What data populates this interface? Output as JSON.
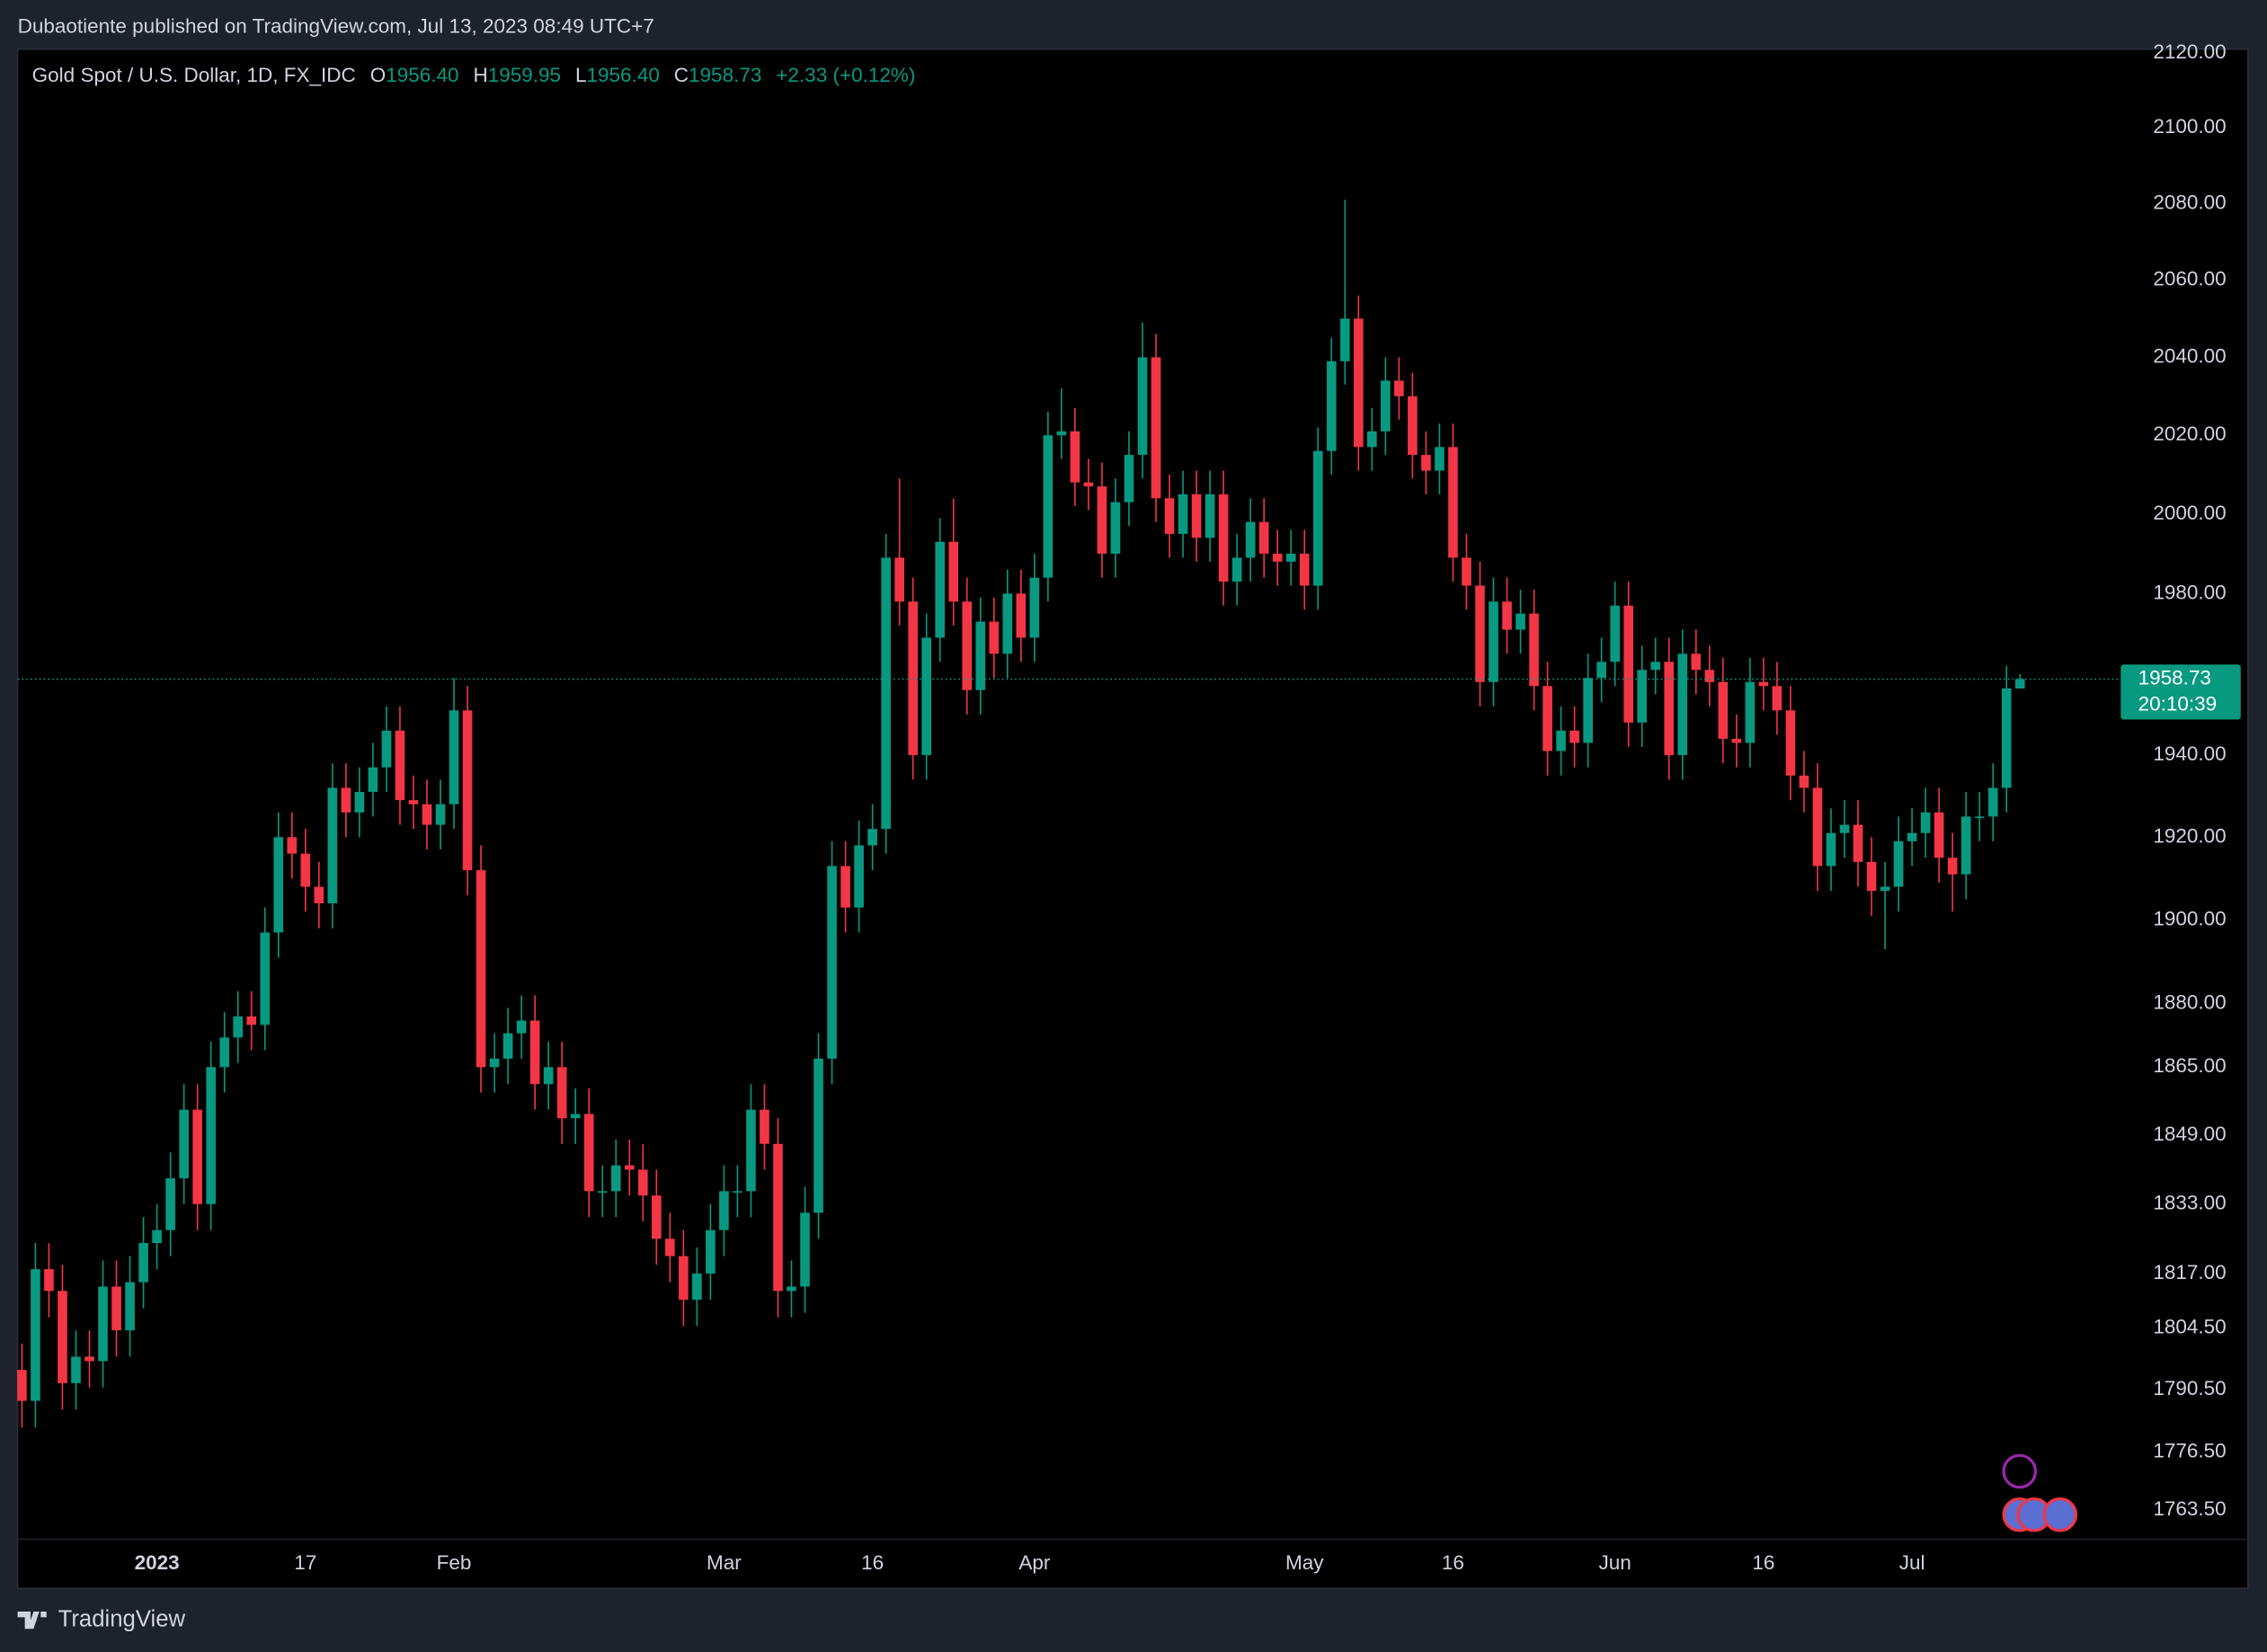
{
  "header": "Dubaotiente published on TradingView.com, Jul 13, 2023 08:49 UTC+7",
  "footer": "TradingView",
  "chart_data": {
    "type": "candlestick",
    "title": "Gold Spot / U.S. Dollar, 1D, FX_IDC",
    "legend": [
      {
        "key": "O",
        "value": "1956.40"
      },
      {
        "key": "H",
        "value": "1959.95"
      },
      {
        "key": "L",
        "value": "1956.40"
      },
      {
        "key": "C",
        "value": "1958.73"
      }
    ],
    "change": "+2.33 (+0.12%)",
    "countdown": "20:10:39",
    "up_color": "#089981",
    "down_color": "#f23645",
    "log_scale": true,
    "grid": false,
    "ylim": [
      1757,
      2121
    ],
    "yticks": [
      {
        "value": 2120,
        "label": "2120.00"
      },
      {
        "value": 2100,
        "label": "2100.00"
      },
      {
        "value": 2080,
        "label": "2080.00"
      },
      {
        "value": 2060,
        "label": "2060.00"
      },
      {
        "value": 2040,
        "label": "2040.00"
      },
      {
        "value": 2020,
        "label": "2020.00"
      },
      {
        "value": 2000,
        "label": "2000.00"
      },
      {
        "value": 1980,
        "label": "1980.00"
      },
      {
        "value": 1940,
        "label": "1940.00"
      },
      {
        "value": 1920,
        "label": "1920.00"
      },
      {
        "value": 1900,
        "label": "1900.00"
      },
      {
        "value": 1880,
        "label": "1880.00"
      },
      {
        "value": 1865,
        "label": "1865.00"
      },
      {
        "value": 1849,
        "label": "1849.00"
      },
      {
        "value": 1833,
        "label": "1833.00"
      },
      {
        "value": 1817,
        "label": "1817.00"
      },
      {
        "value": 1804.5,
        "label": "1804.50"
      },
      {
        "value": 1790.5,
        "label": "1790.50"
      },
      {
        "value": 1776.5,
        "label": "1776.50"
      },
      {
        "value": 1763.5,
        "label": "1763.50"
      }
    ],
    "categories": [
      null,
      null,
      null,
      null,
      null,
      null,
      null,
      null,
      null,
      null,
      "2023",
      null,
      null,
      null,
      null,
      null,
      null,
      null,
      null,
      null,
      null,
      "17",
      null,
      null,
      null,
      null,
      null,
      null,
      null,
      null,
      null,
      null,
      "Feb",
      null,
      null,
      null,
      null,
      null,
      null,
      null,
      null,
      null,
      null,
      null,
      null,
      null,
      null,
      null,
      null,
      null,
      null,
      null,
      "Mar",
      null,
      null,
      null,
      null,
      null,
      null,
      null,
      null,
      null,
      null,
      "16",
      null,
      null,
      null,
      null,
      null,
      null,
      null,
      null,
      null,
      null,
      null,
      "Apr",
      null,
      null,
      null,
      null,
      null,
      null,
      null,
      null,
      null,
      null,
      null,
      null,
      null,
      null,
      null,
      null,
      null,
      null,
      null,
      "May",
      null,
      null,
      null,
      null,
      null,
      null,
      null,
      null,
      null,
      null,
      "16",
      null,
      null,
      null,
      null,
      null,
      null,
      null,
      null,
      null,
      null,
      null,
      "Jun",
      null,
      null,
      null,
      null,
      null,
      null,
      null,
      null,
      null,
      null,
      "16",
      null,
      null,
      null,
      null,
      null,
      null,
      null,
      null,
      null,
      null,
      "Jul",
      null,
      null,
      null,
      null,
      null,
      null,
      null,
      null
    ],
    "open": [
      1795,
      1788,
      1818,
      1813,
      1792,
      1798,
      1797,
      1814,
      1804,
      1815,
      1824,
      1827,
      1839,
      1855,
      1833,
      1865,
      1872,
      1877,
      1875,
      1897,
      1920,
      1916,
      1908,
      1904,
      1932,
      1926,
      1931,
      1937,
      1946,
      1929,
      1928,
      1923,
      1928,
      1951,
      1912,
      1865,
      1867,
      1873,
      1876,
      1861,
      1865,
      1853,
      1854,
      1836,
      1836,
      1842,
      1841,
      1835,
      1825,
      1821,
      1811,
      1817,
      1827,
      1836,
      1836,
      1855,
      1847,
      1813,
      1814,
      1831,
      1867,
      1913,
      1903,
      1918,
      1922,
      1989,
      1978,
      1940,
      1969,
      1993,
      1978,
      1956,
      1973,
      1965,
      1980,
      1969,
      1984,
      2020,
      2021,
      2008,
      2007,
      1990,
      2003,
      2015,
      2040,
      2004,
      1995,
      2005,
      1994,
      2005,
      1983,
      1989,
      1998,
      1990,
      1988,
      1990,
      1982,
      2016,
      2039,
      2050,
      2017,
      2021,
      2034,
      2030,
      2015,
      2011,
      2017,
      1989,
      1982,
      1958,
      1978,
      1971,
      1975,
      1957,
      1941,
      1946,
      1943,
      1959,
      1963,
      1977,
      1948,
      1961,
      1963,
      1940,
      1965,
      1961,
      1958,
      1944,
      1943,
      1958,
      1957,
      1951,
      1935,
      1932,
      1913,
      1921,
      1923,
      1914,
      1907,
      1908,
      1919,
      1921,
      1926,
      1915,
      1911,
      1925,
      1925,
      1932,
      1956.4
    ],
    "high": [
      1801,
      1824,
      1824,
      1819,
      1804,
      1804,
      1820,
      1820,
      1821,
      1830,
      1833,
      1845,
      1861,
      1861,
      1871,
      1878,
      1883,
      1883,
      1903,
      1926,
      1926,
      1922,
      1914,
      1938,
      1938,
      1937,
      1943,
      1952,
      1952,
      1935,
      1934,
      1934,
      1959,
      1957,
      1918,
      1873,
      1879,
      1882,
      1882,
      1871,
      1871,
      1860,
      1860,
      1842,
      1848,
      1848,
      1847,
      1841,
      1831,
      1827,
      1823,
      1833,
      1842,
      1842,
      1861,
      1861,
      1853,
      1820,
      1837,
      1873,
      1919,
      1919,
      1924,
      1928,
      1995,
      2009,
      1984,
      1975,
      1999,
      2004,
      1984,
      1979,
      1979,
      1986,
      1986,
      1990,
      2026,
      2032,
      2027,
      2014,
      2013,
      2009,
      2021,
      2049,
      2046,
      2010,
      2011,
      2011,
      2011,
      2011,
      1995,
      2004,
      2004,
      1996,
      1996,
      1996,
      2022,
      2045,
      2081,
      2056,
      2027,
      2040,
      2040,
      2036,
      2021,
      2023,
      2023,
      1995,
      1988,
      1984,
      1984,
      1981,
      1981,
      1963,
      1952,
      1952,
      1965,
      1969,
      1983,
      1983,
      1967,
      1969,
      1969,
      1971,
      1971,
      1967,
      1964,
      1950,
      1964,
      1964,
      1963,
      1957,
      1941,
      1938,
      1927,
      1929,
      1929,
      1920,
      1914,
      1925,
      1927,
      1932,
      1932,
      1921,
      1931,
      1931,
      1938,
      1962,
      1959.95
    ],
    "low": [
      1782,
      1782,
      1807,
      1786,
      1786,
      1791,
      1791,
      1798,
      1798,
      1809,
      1818,
      1821,
      1833,
      1827,
      1827,
      1859,
      1866,
      1869,
      1869,
      1891,
      1910,
      1902,
      1898,
      1898,
      1920,
      1920,
      1925,
      1931,
      1923,
      1922,
      1917,
      1917,
      1922,
      1906,
      1859,
      1859,
      1861,
      1867,
      1855,
      1855,
      1847,
      1847,
      1830,
      1830,
      1830,
      1835,
      1829,
      1819,
      1815,
      1805,
      1805,
      1811,
      1821,
      1830,
      1830,
      1841,
      1807,
      1807,
      1808,
      1825,
      1861,
      1897,
      1897,
      1912,
      1916,
      1972,
      1934,
      1934,
      1963,
      1972,
      1950,
      1950,
      1959,
      1959,
      1963,
      1963,
      1978,
      2014,
      2002,
      2001,
      1984,
      1984,
      1997,
      2009,
      1998,
      1989,
      1989,
      1988,
      1988,
      1977,
      1977,
      1983,
      1984,
      1982,
      1982,
      1976,
      1976,
      2010,
      2033,
      2011,
      2011,
      2015,
      2024,
      2009,
      2005,
      2005,
      1983,
      1976,
      1952,
      1952,
      1965,
      1965,
      1951,
      1935,
      1935,
      1937,
      1937,
      1953,
      1957,
      1942,
      1942,
      1955,
      1934,
      1934,
      1955,
      1952,
      1938,
      1937,
      1937,
      1951,
      1945,
      1929,
      1926,
      1907,
      1907,
      1915,
      1908,
      1901,
      1893,
      1902,
      1913,
      1915,
      1909,
      1902,
      1905,
      1919,
      1919,
      1926,
      1956.4
    ],
    "close": [
      1788,
      1818,
      1813,
      1792,
      1798,
      1797,
      1814,
      1804,
      1815,
      1824,
      1827,
      1839,
      1855,
      1833,
      1865,
      1872,
      1877,
      1875,
      1897,
      1920,
      1916,
      1908,
      1904,
      1932,
      1926,
      1931,
      1937,
      1946,
      1929,
      1928,
      1923,
      1928,
      1951,
      1912,
      1865,
      1867,
      1873,
      1876,
      1861,
      1865,
      1853,
      1854,
      1836,
      1836,
      1842,
      1841,
      1835,
      1825,
      1821,
      1811,
      1817,
      1827,
      1836,
      1836,
      1855,
      1847,
      1813,
      1814,
      1831,
      1867,
      1913,
      1903,
      1918,
      1922,
      1989,
      1978,
      1940,
      1969,
      1993,
      1978,
      1956,
      1973,
      1965,
      1980,
      1969,
      1984,
      2020,
      2021,
      2008,
      2007,
      1990,
      2003,
      2015,
      2040,
      2004,
      1995,
      2005,
      1994,
      2005,
      1983,
      1989,
      1998,
      1990,
      1988,
      1990,
      1982,
      2016,
      2039,
      2050,
      2017,
      2021,
      2034,
      2030,
      2015,
      2011,
      2017,
      1989,
      1982,
      1958,
      1978,
      1971,
      1975,
      1957,
      1941,
      1946,
      1943,
      1959,
      1963,
      1977,
      1948,
      1961,
      1963,
      1940,
      1965,
      1961,
      1958,
      1944,
      1943,
      1958,
      1957,
      1951,
      1935,
      1932,
      1913,
      1921,
      1923,
      1914,
      1907,
      1908,
      1919,
      1921,
      1926,
      1915,
      1911,
      1925,
      1925,
      1932,
      1956.4,
      1958.73
    ]
  }
}
